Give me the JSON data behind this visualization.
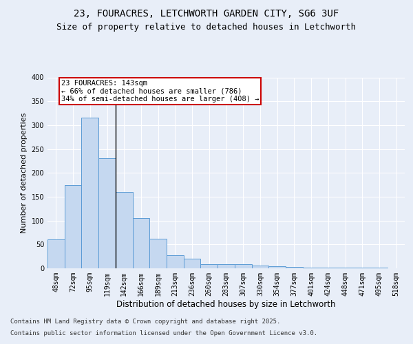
{
  "title_line1": "23, FOURACRES, LETCHWORTH GARDEN CITY, SG6 3UF",
  "title_line2": "Size of property relative to detached houses in Letchworth",
  "xlabel": "Distribution of detached houses by size in Letchworth",
  "ylabel": "Number of detached properties",
  "categories": [
    "48sqm",
    "72sqm",
    "95sqm",
    "119sqm",
    "142sqm",
    "166sqm",
    "189sqm",
    "213sqm",
    "236sqm",
    "260sqm",
    "283sqm",
    "307sqm",
    "330sqm",
    "354sqm",
    "377sqm",
    "401sqm",
    "424sqm",
    "448sqm",
    "471sqm",
    "495sqm",
    "518sqm"
  ],
  "values": [
    60,
    175,
    315,
    230,
    160,
    105,
    62,
    27,
    20,
    9,
    9,
    8,
    6,
    4,
    3,
    2,
    2,
    1,
    1,
    1,
    0
  ],
  "bar_color": "#c5d8f0",
  "bar_edge_color": "#5b9bd5",
  "annotation_text": "23 FOURACRES: 143sqm\n← 66% of detached houses are smaller (786)\n34% of semi-detached houses are larger (408) →",
  "annotation_box_color": "#ffffff",
  "annotation_box_edge_color": "#cc0000",
  "ylim": [
    0,
    400
  ],
  "yticks": [
    0,
    50,
    100,
    150,
    200,
    250,
    300,
    350,
    400
  ],
  "bg_color": "#e8eef8",
  "plot_bg_color": "#e8eef8",
  "grid_color": "#ffffff",
  "footer_line1": "Contains HM Land Registry data © Crown copyright and database right 2025.",
  "footer_line2": "Contains public sector information licensed under the Open Government Licence v3.0.",
  "title_fontsize": 10,
  "subtitle_fontsize": 9,
  "tick_fontsize": 7,
  "xlabel_fontsize": 8.5,
  "ylabel_fontsize": 8,
  "annotation_fontsize": 7.5,
  "footer_fontsize": 6.5
}
